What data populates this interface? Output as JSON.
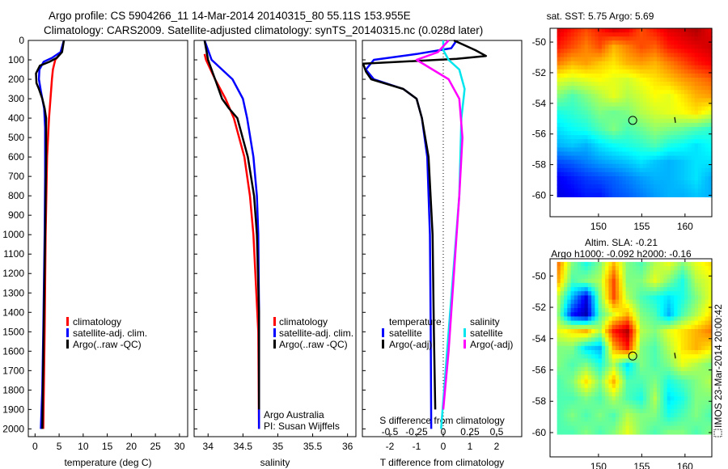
{
  "header": {
    "line1": "Argo profile: CS 5904266_11 14-Mar-2014 20140315_80 55.11S 153.955E",
    "line2": "Climatology: CARS2009. Satellite-adjusted climatology: synTS_20140315.nc (0.028d later)"
  },
  "colors": {
    "climatology": "#ff0000",
    "satellite": "#0000ff",
    "argo": "#000000",
    "sal_satellite": "#00e5ee",
    "sal_argo": "#ff00ff"
  },
  "chart_data": [
    {
      "id": "temperature",
      "type": "line",
      "xlabel": "temperature (deg C)",
      "ylabel": "",
      "xlim": [
        -1.4,
        31.7
      ],
      "ylim": [
        2040,
        0
      ],
      "xticks": [
        0,
        5,
        10,
        15,
        20,
        25,
        30
      ],
      "xtick_labels": [
        "0",
        "5",
        "10",
        "15",
        "20",
        "25",
        "30"
      ],
      "yticks": [
        0,
        100,
        200,
        300,
        400,
        500,
        600,
        700,
        800,
        900,
        1000,
        1100,
        1200,
        1300,
        1400,
        1500,
        1600,
        1700,
        1800,
        1900,
        2000
      ],
      "ytick_labels": [
        "0",
        "100",
        "200",
        "300",
        "400",
        "500",
        "600",
        "700",
        "800",
        "900",
        "1000",
        "1100",
        "1200",
        "1300",
        "1400",
        "1500",
        "1600",
        "1700",
        "1800",
        "1900",
        "2000"
      ],
      "legend": [
        "climatology",
        "satellite-adj. clim.",
        "Argo(..raw -QC)"
      ],
      "series": [
        {
          "name": "climatology",
          "color": "#ff0000",
          "depth": [
            70,
            100,
            150,
            200,
            300,
            400,
            600,
            1000,
            1500,
            2000
          ],
          "values": [
            5.2,
            4.2,
            3.7,
            3.5,
            3.2,
            2.9,
            2.5,
            2.2,
            2.0,
            1.7
          ]
        },
        {
          "name": "satellite-adj. clim.",
          "color": "#0000ff",
          "depth": [
            0,
            60,
            90,
            110,
            150,
            200,
            260,
            350,
            450,
            700,
            1000,
            1500,
            1800,
            2000
          ],
          "values": [
            6.0,
            5.3,
            3.5,
            1.8,
            0.9,
            0.8,
            1.2,
            1.9,
            2.1,
            2.1,
            2.0,
            1.7,
            1.5,
            1.2
          ]
        },
        {
          "name": "Argo(..raw -QC)",
          "color": "#000000",
          "depth": [
            0,
            60,
            90,
            110,
            130,
            170,
            220,
            250,
            300,
            350,
            400,
            600,
            1000,
            1500,
            2000
          ],
          "values": [
            6.0,
            5.6,
            4.5,
            3.0,
            1.0,
            0.2,
            0.3,
            0.8,
            1.5,
            2.0,
            2.3,
            2.3,
            2.1,
            1.8,
            1.5
          ]
        }
      ]
    },
    {
      "id": "salinity",
      "type": "line",
      "xlabel": "salinity",
      "ylabel": "",
      "xlim": [
        33.8,
        36.12
      ],
      "ylim": [
        2040,
        0
      ],
      "xticks": [
        34,
        34.5,
        35,
        35.5,
        36
      ],
      "xtick_labels": [
        "34",
        "34.5",
        "35",
        "35.5",
        "36"
      ],
      "legend": [
        "climatology",
        "satellite-adj. clim.",
        "Argo(..raw -QC)"
      ],
      "annotations": [
        "Argo Australia",
        "PI: Susan Wijffels"
      ],
      "series": [
        {
          "name": "climatology",
          "color": "#ff0000",
          "depth": [
            70,
            100,
            200,
            300,
            400,
            600,
            800,
            1000,
            1500,
            2000
          ],
          "values": [
            33.95,
            33.97,
            34.1,
            34.25,
            34.37,
            34.52,
            34.6,
            34.65,
            34.72,
            34.73
          ]
        },
        {
          "name": "satellite-adj. clim.",
          "color": "#0000ff",
          "depth": [
            0,
            100,
            200,
            300,
            400,
            600,
            800,
            1000,
            1400,
            2000
          ],
          "values": [
            33.95,
            34.05,
            34.35,
            34.5,
            34.56,
            34.65,
            34.7,
            34.72,
            34.73,
            34.73
          ]
        },
        {
          "name": "Argo(..raw -QC)",
          "color": "#000000",
          "depth": [
            0,
            100,
            200,
            300,
            350,
            400,
            600,
            800,
            1000,
            1400,
            1900
          ],
          "values": [
            33.95,
            34.0,
            34.1,
            34.2,
            34.3,
            34.42,
            34.57,
            34.66,
            34.7,
            34.73,
            34.73
          ]
        }
      ]
    },
    {
      "id": "difference",
      "type": "line",
      "xlabel": "T difference from climatology",
      "xlabel_top": "S difference from climatology",
      "xlim": [
        -3.03,
        2.94
      ],
      "ylim": [
        2040,
        0
      ],
      "xticks": [
        -2,
        -1,
        0,
        1,
        2
      ],
      "xtick_labels": [
        "-2",
        "-1",
        "0",
        "1",
        "2"
      ],
      "s_xticks": [
        -0.5,
        -0.25,
        0,
        0.25,
        0.5
      ],
      "s_xtick_labels": [
        "-0.5",
        "-0.25",
        "0",
        "0.25",
        "0.5"
      ],
      "s_scale": 4,
      "legend_temperature": {
        "title": "temperature",
        "items": [
          "satellite",
          "Argo(-adj)"
        ]
      },
      "legend_salinity": {
        "title": "salinity",
        "items": [
          "satellite",
          "Argo(-adj)"
        ]
      },
      "series": [
        {
          "name": "T satellite",
          "kind": "T",
          "color": "#0000ff",
          "depth": [
            0,
            40,
            70,
            100,
            150,
            200,
            250,
            300,
            400,
            600,
            1000,
            1500,
            2000
          ],
          "values": [
            0.5,
            0.3,
            -1.0,
            -2.6,
            -2.9,
            -2.6,
            -1.5,
            -1.0,
            -0.8,
            -0.6,
            -0.5,
            -0.47,
            -0.45
          ]
        },
        {
          "name": "T Argo(-adj)",
          "kind": "T",
          "color": "#000000",
          "depth": [
            0,
            50,
            80,
            95,
            120,
            160,
            200,
            250,
            300,
            400,
            600,
            1000,
            1500,
            1900
          ],
          "values": [
            0.4,
            1.2,
            1.6,
            0.5,
            -3.0,
            -2.9,
            -2.7,
            -1.5,
            -1.0,
            -0.8,
            -0.55,
            -0.4,
            -0.35,
            -0.3
          ]
        },
        {
          "name": "S satellite",
          "kind": "S",
          "color": "#00e5ee",
          "depth": [
            0,
            50,
            100,
            150,
            250,
            400,
            800,
            1500,
            2000
          ],
          "values": [
            0.0,
            0.0,
            0.05,
            0.15,
            0.2,
            0.17,
            0.15,
            0.05,
            -0.02
          ]
        },
        {
          "name": "S Argo(-adj)",
          "kind": "S",
          "color": "#ff00ff",
          "depth": [
            0,
            60,
            100,
            150,
            200,
            300,
            500,
            800,
            1200,
            1600,
            1900
          ],
          "values": [
            0.05,
            -0.05,
            -0.25,
            -0.1,
            0.05,
            0.15,
            0.18,
            0.15,
            0.1,
            0.05,
            0.0
          ]
        }
      ]
    },
    {
      "id": "sst_map",
      "type": "heatmap",
      "title": "sat. SST: 5.75 Argo: 5.69",
      "xlim": [
        144.4,
        163.1
      ],
      "ylim": [
        -61.4,
        -49.1
      ],
      "xticks": [
        150,
        155,
        160
      ],
      "xtick_labels": [
        "150",
        "155",
        "160"
      ],
      "yticks": [
        -50,
        -52,
        -54,
        -56,
        -58,
        -60
      ],
      "ytick_labels": [
        "-50",
        "-52",
        "-54",
        "-56",
        "-58",
        "-60"
      ],
      "lon_range": [
        145.2,
        163.1
      ],
      "lat_range": [
        -49.1,
        -60.1
      ],
      "argo_position": [
        153.955,
        -55.11
      ],
      "grid": [
        [
          0.9,
          0.85,
          0.8,
          0.85,
          0.9,
          0.88,
          0.8,
          0.85,
          0.9,
          0.92,
          0.95,
          0.9
        ],
        [
          0.85,
          0.8,
          0.75,
          0.8,
          0.7,
          0.75,
          0.8,
          0.78,
          0.85,
          0.88,
          0.9,
          0.92
        ],
        [
          0.75,
          0.7,
          0.72,
          0.68,
          0.65,
          0.7,
          0.72,
          0.7,
          0.75,
          0.8,
          0.85,
          0.88
        ],
        [
          0.6,
          0.58,
          0.6,
          0.62,
          0.6,
          0.58,
          0.62,
          0.65,
          0.68,
          0.72,
          0.75,
          0.78
        ],
        [
          0.5,
          0.45,
          0.5,
          0.55,
          0.6,
          0.55,
          0.58,
          0.62,
          0.6,
          0.65,
          0.7,
          0.72
        ],
        [
          0.4,
          0.42,
          0.45,
          0.5,
          0.48,
          0.5,
          0.55,
          0.58,
          0.6,
          0.62,
          0.65,
          0.6
        ],
        [
          0.35,
          0.38,
          0.4,
          0.45,
          0.5,
          0.45,
          0.48,
          0.52,
          0.5,
          0.48,
          0.45,
          0.42
        ],
        [
          0.3,
          0.32,
          0.3,
          0.35,
          0.38,
          0.4,
          0.42,
          0.45,
          0.4,
          0.38,
          0.35,
          0.38
        ],
        [
          0.2,
          0.22,
          0.25,
          0.28,
          0.3,
          0.32,
          0.35,
          0.32,
          0.3,
          0.32,
          0.35,
          0.35
        ],
        [
          0.12,
          0.15,
          0.18,
          0.2,
          0.22,
          0.25,
          0.28,
          0.3,
          0.3,
          0.32,
          0.35,
          0.3
        ],
        [
          0.1,
          0.12,
          0.15,
          0.15,
          0.2,
          0.22,
          0.25,
          0.28,
          0.3,
          0.3,
          0.32,
          0.3
        ]
      ]
    },
    {
      "id": "sla_map",
      "type": "heatmap",
      "title": "Altim. SLA: -0.21",
      "subtitle": "Argo h1000: -0.092 h2000: -0.16",
      "xlim": [
        144.4,
        163.1
      ],
      "ylim": [
        -61.55,
        -48.9
      ],
      "xticks": [
        150,
        155,
        160
      ],
      "xtick_labels": [
        "150",
        "155",
        "160"
      ],
      "yticks": [
        -50,
        -52,
        -54,
        -56,
        -58,
        -60
      ],
      "ytick_labels": [
        "-50",
        "-52",
        "-54",
        "-56",
        "-58",
        "-60"
      ],
      "lon_range": [
        145.2,
        163.1
      ],
      "lat_range": [
        -49.1,
        -60.1
      ],
      "argo_position": [
        153.955,
        -55.11
      ],
      "grid": [
        [
          0.75,
          0.5,
          0.4,
          0.5,
          0.7,
          0.5,
          0.45,
          0.55,
          0.6,
          0.5,
          0.6,
          0.65
        ],
        [
          0.7,
          0.45,
          0.5,
          0.55,
          0.8,
          0.5,
          0.5,
          0.6,
          0.5,
          0.4,
          0.55,
          0.6
        ],
        [
          0.55,
          0.3,
          0.1,
          0.5,
          0.8,
          0.55,
          0.45,
          0.4,
          0.35,
          0.4,
          0.5,
          0.6
        ],
        [
          0.5,
          0.15,
          0.05,
          0.45,
          0.6,
          0.7,
          0.5,
          0.45,
          0.3,
          0.45,
          0.55,
          0.65
        ],
        [
          0.6,
          0.65,
          0.7,
          0.55,
          0.85,
          0.95,
          0.55,
          0.5,
          0.6,
          0.65,
          0.7,
          0.75
        ],
        [
          0.5,
          0.5,
          0.35,
          0.3,
          0.7,
          0.85,
          0.5,
          0.45,
          0.55,
          0.65,
          0.7,
          0.65
        ],
        [
          0.5,
          0.45,
          0.5,
          0.4,
          0.55,
          0.35,
          0.5,
          0.45,
          0.5,
          0.6,
          0.55,
          0.5
        ],
        [
          0.45,
          0.5,
          0.65,
          0.5,
          0.7,
          0.45,
          0.45,
          0.5,
          0.4,
          0.45,
          0.5,
          0.55
        ],
        [
          0.45,
          0.45,
          0.5,
          0.45,
          0.55,
          0.45,
          0.4,
          0.55,
          0.35,
          0.4,
          0.5,
          0.5
        ],
        [
          0.45,
          0.5,
          0.45,
          0.5,
          0.45,
          0.55,
          0.5,
          0.5,
          0.4,
          0.45,
          0.5,
          0.45
        ],
        [
          0.45,
          0.45,
          0.5,
          0.45,
          0.5,
          0.6,
          0.5,
          0.45,
          0.5,
          0.5,
          0.45,
          0.5
        ]
      ]
    }
  ],
  "footer": {
    "timestamp": "IMOS 23-Mar-2014 20:00:42"
  }
}
